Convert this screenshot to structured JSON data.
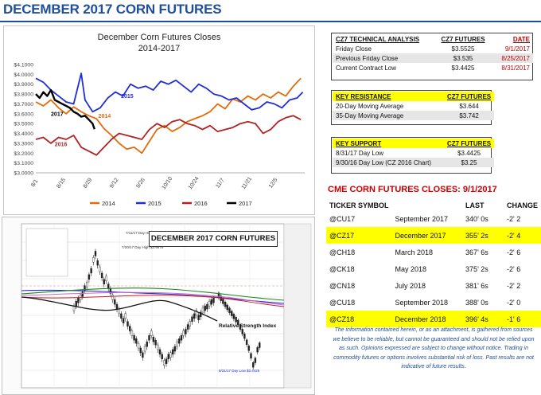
{
  "page_title": "DECEMBER 2017 CORN FUTURES",
  "chart_data": [
    {
      "type": "line",
      "title": "December Corn Futures Closes",
      "subtitle": "2014-2017",
      "ylim": [
        3.0,
        4.1
      ],
      "yticks": [
        "$3.0000",
        "$3.1000",
        "$3.2000",
        "$3.3000",
        "$3.4000",
        "$3.5000",
        "$3.6000",
        "$3.7000",
        "$3.8000",
        "$3.9000",
        "$4.0000",
        "$4.1000"
      ],
      "x_categories": [
        "8/1",
        "8/15",
        "8/29",
        "9/12",
        "9/26",
        "10/10",
        "10/24",
        "11/7",
        "11/21",
        "12/5"
      ],
      "x_range_days": [
        0,
        142
      ],
      "legend": "bottom",
      "series": [
        {
          "name": "2014",
          "color": "#e36c09",
          "label": "2014",
          "points": [
            [
              0,
              3.72
            ],
            [
              4,
              3.68
            ],
            [
              8,
              3.74
            ],
            [
              12,
              3.66
            ],
            [
              16,
              3.6
            ],
            [
              20,
              3.67
            ],
            [
              24,
              3.62
            ],
            [
              28,
              3.58
            ],
            [
              32,
              3.55
            ],
            [
              36,
              3.45
            ],
            [
              40,
              3.38
            ],
            [
              44,
              3.3
            ],
            [
              48,
              3.24
            ],
            [
              52,
              3.26
            ],
            [
              56,
              3.2
            ],
            [
              60,
              3.32
            ],
            [
              64,
              3.44
            ],
            [
              68,
              3.48
            ],
            [
              72,
              3.42
            ],
            [
              76,
              3.46
            ],
            [
              80,
              3.52
            ],
            [
              84,
              3.55
            ],
            [
              88,
              3.58
            ],
            [
              92,
              3.62
            ],
            [
              96,
              3.7
            ],
            [
              100,
              3.65
            ],
            [
              104,
              3.75
            ],
            [
              108,
              3.72
            ],
            [
              112,
              3.78
            ],
            [
              116,
              3.74
            ],
            [
              120,
              3.8
            ],
            [
              124,
              3.76
            ],
            [
              128,
              3.82
            ],
            [
              132,
              3.78
            ],
            [
              136,
              3.88
            ],
            [
              140,
              3.96
            ]
          ]
        },
        {
          "name": "2015",
          "color": "#1f2fd6",
          "label": "2015",
          "points": [
            [
              0,
              3.96
            ],
            [
              4,
              3.92
            ],
            [
              8,
              3.84
            ],
            [
              12,
              3.78
            ],
            [
              16,
              3.72
            ],
            [
              20,
              3.7
            ],
            [
              24,
              4.01
            ],
            [
              26,
              3.74
            ],
            [
              30,
              3.62
            ],
            [
              34,
              3.66
            ],
            [
              38,
              3.76
            ],
            [
              42,
              3.82
            ],
            [
              46,
              3.78
            ],
            [
              50,
              3.9
            ],
            [
              54,
              3.86
            ],
            [
              58,
              3.88
            ],
            [
              62,
              3.84
            ],
            [
              66,
              3.93
            ],
            [
              70,
              3.9
            ],
            [
              74,
              3.94
            ],
            [
              78,
              3.88
            ],
            [
              82,
              3.82
            ],
            [
              86,
              3.9
            ],
            [
              90,
              3.86
            ],
            [
              94,
              3.8
            ],
            [
              98,
              3.78
            ],
            [
              102,
              3.74
            ],
            [
              106,
              3.76
            ],
            [
              110,
              3.7
            ],
            [
              114,
              3.64
            ],
            [
              118,
              3.66
            ],
            [
              122,
              3.72
            ],
            [
              126,
              3.7
            ],
            [
              130,
              3.66
            ],
            [
              134,
              3.74
            ],
            [
              138,
              3.76
            ],
            [
              141,
              3.82
            ]
          ]
        },
        {
          "name": "2016",
          "color": "#b22222",
          "label": "2016",
          "points": [
            [
              0,
              3.34
            ],
            [
              4,
              3.36
            ],
            [
              8,
              3.3
            ],
            [
              12,
              3.36
            ],
            [
              16,
              3.34
            ],
            [
              20,
              3.38
            ],
            [
              24,
              3.26
            ],
            [
              28,
              3.22
            ],
            [
              32,
              3.18
            ],
            [
              36,
              3.26
            ],
            [
              40,
              3.34
            ],
            [
              44,
              3.4
            ],
            [
              48,
              3.38
            ],
            [
              52,
              3.36
            ],
            [
              56,
              3.34
            ],
            [
              60,
              3.44
            ],
            [
              64,
              3.5
            ],
            [
              68,
              3.46
            ],
            [
              72,
              3.52
            ],
            [
              76,
              3.54
            ],
            [
              80,
              3.5
            ],
            [
              84,
              3.48
            ],
            [
              88,
              3.44
            ],
            [
              92,
              3.48
            ],
            [
              96,
              3.42
            ],
            [
              100,
              3.44
            ],
            [
              104,
              3.46
            ],
            [
              108,
              3.5
            ],
            [
              112,
              3.52
            ],
            [
              116,
              3.5
            ],
            [
              120,
              3.4
            ],
            [
              124,
              3.44
            ],
            [
              128,
              3.52
            ],
            [
              132,
              3.56
            ],
            [
              136,
              3.58
            ],
            [
              140,
              3.54
            ]
          ]
        },
        {
          "name": "2017",
          "color": "#000000",
          "label": "2017",
          "points": [
            [
              0,
              3.8
            ],
            [
              2,
              3.76
            ],
            [
              4,
              3.82
            ],
            [
              6,
              3.78
            ],
            [
              8,
              3.84
            ],
            [
              10,
              3.74
            ],
            [
              12,
              3.72
            ],
            [
              14,
              3.7
            ],
            [
              16,
              3.68
            ],
            [
              18,
              3.66
            ],
            [
              20,
              3.62
            ],
            [
              22,
              3.6
            ],
            [
              24,
              3.57
            ],
            [
              26,
              3.58
            ],
            [
              28,
              3.54
            ],
            [
              30,
              3.5
            ],
            [
              31,
              3.4425
            ]
          ]
        }
      ]
    },
    {
      "type": "line",
      "title": "DECEMBER 2017 CORN FUTURES",
      "annotations": [
        "7/11/17 Day High $4.1725",
        "7/20/17 Day High $3.9875",
        "Relative Strength Index",
        "8/31/17 Day Low $3.4425"
      ]
    }
  ],
  "tech": {
    "headers": [
      "CZ7 TECHNICAL ANALYSIS",
      "CZ7 FUTURES",
      "DATE"
    ],
    "rows": [
      {
        "label": "Friday Close",
        "value": "$3.5525",
        "date": "9/1/2017"
      },
      {
        "label": "Previous Friday Close",
        "value": "$3.535",
        "date": "8/25/2017"
      },
      {
        "label": "Current Contract Low",
        "value": "$3.4425",
        "date": "8/31/2017"
      }
    ]
  },
  "resistance": {
    "headers": [
      "KEY RESISTANCE",
      "CZ7 FUTURES"
    ],
    "rows": [
      {
        "label": "20-Day Moving Average",
        "value": "$3.644"
      },
      {
        "label": "35-Day Moving Average",
        "value": "$3.742"
      }
    ]
  },
  "support": {
    "headers": [
      "KEY SUPPORT",
      "CZ7 FUTURES"
    ],
    "rows": [
      {
        "label": "8/31/17 Day Low",
        "value": "$3.4425"
      },
      {
        "label": "9/30/16 Day Low (CZ 2016 Chart)",
        "value": "$3.25"
      }
    ]
  },
  "cme": {
    "title": "CME CORN FUTURES CLOSES:  9/1/2017",
    "headers": [
      "TICKER SYMBOL",
      "",
      "LAST",
      "CHANGE"
    ],
    "rows": [
      {
        "ticker": "@CU17",
        "month": "September 2017",
        "last": "340' 0s",
        "change": "-2' 2",
        "highlight": false
      },
      {
        "ticker": "@CZ17",
        "month": "December 2017",
        "last": "355' 2s",
        "change": "-2' 4",
        "highlight": true
      },
      {
        "ticker": "@CH18",
        "month": "March 2018",
        "last": "367' 6s",
        "change": "-2' 6",
        "highlight": false
      },
      {
        "ticker": "@CK18",
        "month": "May 2018",
        "last": "375' 2s",
        "change": "-2' 6",
        "highlight": false
      },
      {
        "ticker": "@CN18",
        "month": "July 2018",
        "last": "381' 6s",
        "change": "-2' 2",
        "highlight": false
      },
      {
        "ticker": "@CU18",
        "month": "September 2018",
        "last": "388' 0s",
        "change": "-2' 0",
        "highlight": false
      },
      {
        "ticker": "@CZ18",
        "month": "December 2018",
        "last": "396' 4s",
        "change": "-1' 6",
        "highlight": true
      }
    ]
  },
  "disclaimer": "The information contained herein, or as an attachment, is gathered from sources we believe to be reliable, but cannot be guaranteed and should not be relied upon as such. Opinions expressed are subject to change without notice. Trading in commodity futures or options involves substantial risk of loss. Past results are not indicative of future results."
}
